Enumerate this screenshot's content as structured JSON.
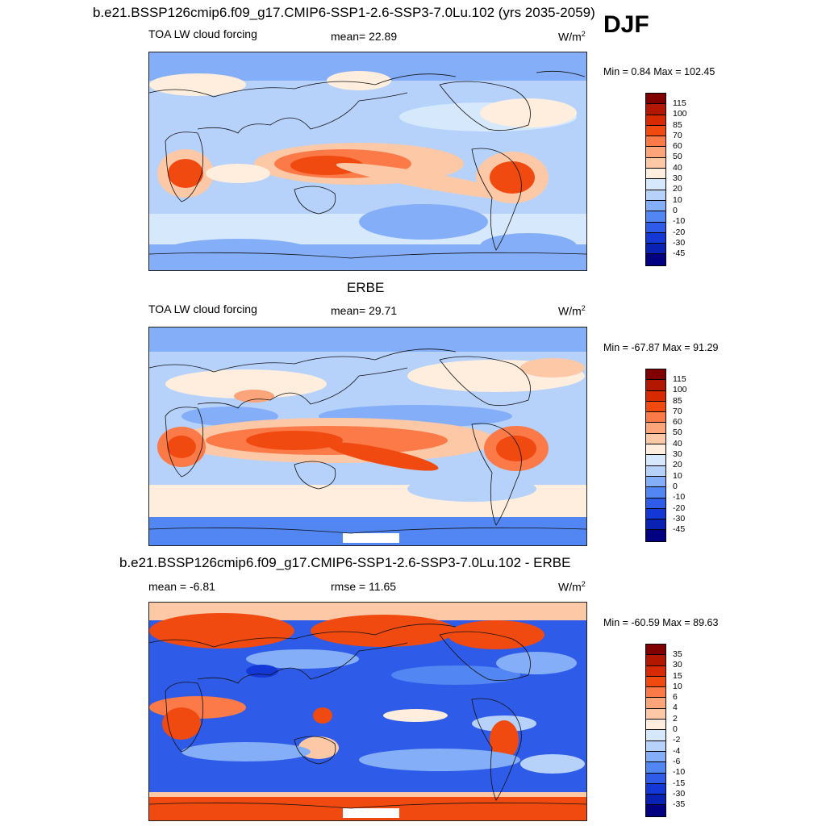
{
  "figure": {
    "main_title": "b.e21.BSSP126cmip6.f09_g17.CMIP6-SSP1-2.6-SSP3-7.0Lu.102 (yrs 2035-2059)",
    "season": "DJF"
  },
  "panels": [
    {
      "title": "",
      "left_label": "TOA LW cloud forcing",
      "center_label": "mean=  22.89",
      "units_base": "W/m",
      "units_exp": "2",
      "minmax": "Min =   0.84 Max = 102.45",
      "levels": [
        "115",
        "100",
        "85",
        "70",
        "60",
        "50",
        "40",
        "30",
        "20",
        "10",
        "0",
        "-10",
        "-20",
        "-30",
        "-45"
      ],
      "colors": [
        "#800000",
        "#b21800",
        "#d82a00",
        "#f04a10",
        "#fb7a48",
        "#fca47a",
        "#fdc8a6",
        "#ffeedd",
        "#d6e8fc",
        "#b6d2fb",
        "#84aef7",
        "#5286f2",
        "#2f5be9",
        "#1438d6",
        "#0a22b4",
        "#000080"
      ]
    },
    {
      "title": "ERBE",
      "left_label": "TOA LW cloud forcing",
      "center_label": "mean=  29.71",
      "units_base": "W/m",
      "units_exp": "2",
      "minmax": "Min = -67.87 Max =  91.29",
      "levels": [
        "115",
        "100",
        "85",
        "70",
        "60",
        "50",
        "40",
        "30",
        "20",
        "10",
        "0",
        "-10",
        "-20",
        "-30",
        "-45"
      ],
      "colors": [
        "#800000",
        "#b21800",
        "#d82a00",
        "#f04a10",
        "#fb7a48",
        "#fca47a",
        "#fdc8a6",
        "#ffeedd",
        "#d6e8fc",
        "#b6d2fb",
        "#84aef7",
        "#5286f2",
        "#2f5be9",
        "#1438d6",
        "#0a22b4",
        "#000080"
      ]
    },
    {
      "title": "b.e21.BSSP126cmip6.f09_g17.CMIP6-SSP1-2.6-SSP3-7.0Lu.102 - ERBE",
      "left_label": "mean =  -6.81",
      "center_label": "rmse =  11.65",
      "units_base": "W/m",
      "units_exp": "2",
      "minmax": "Min = -60.59 Max =  89.63",
      "levels": [
        "35",
        "30",
        "15",
        "10",
        "6",
        "4",
        "2",
        "0",
        "-2",
        "-4",
        "-6",
        "-10",
        "-15",
        "-30",
        "-35"
      ],
      "colors": [
        "#800000",
        "#b21800",
        "#d82a00",
        "#f04a10",
        "#fb7a48",
        "#fca47a",
        "#fdc8a6",
        "#ffeedd",
        "#d6e8fc",
        "#b6d2fb",
        "#84aef7",
        "#5286f2",
        "#2f5be9",
        "#1438d6",
        "#0a22b4",
        "#000080"
      ]
    }
  ]
}
